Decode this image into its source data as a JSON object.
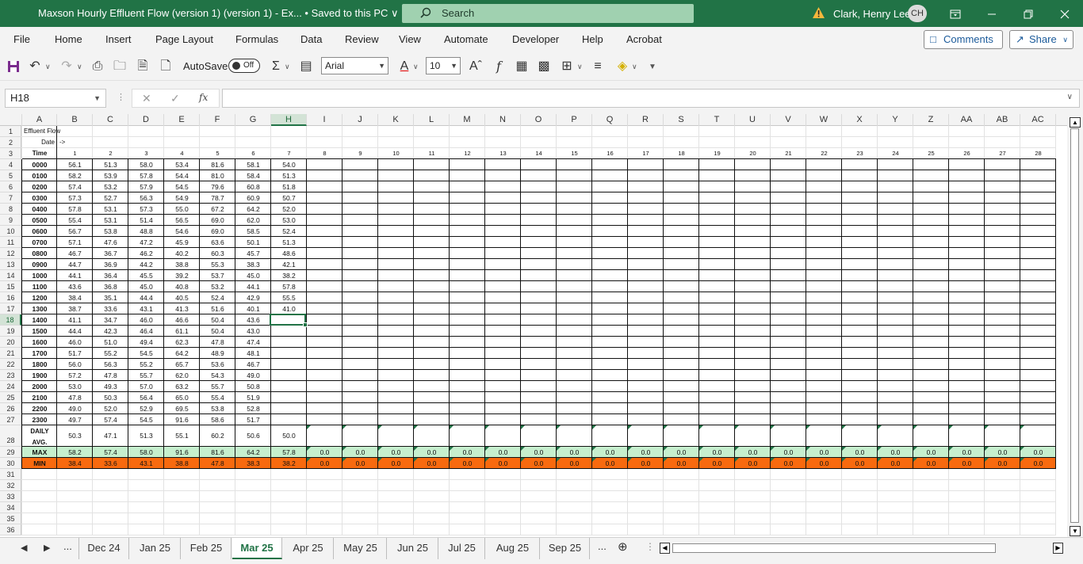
{
  "window": {
    "title": "Maxson Hourly Effluent Flow (version 1) (version 1)  -  Ex...  • Saved to this PC ∨",
    "search_placeholder": "Search",
    "user_name": "Clark, Henry Lee",
    "user_initials": "CH",
    "accent": "#217346"
  },
  "menu": {
    "items": [
      "File",
      "Home",
      "Insert",
      "Page Layout",
      "Formulas",
      "Data",
      "Review",
      "View",
      "Automate",
      "Developer",
      "Help",
      "Acrobat"
    ],
    "comments_label": "Comments",
    "share_label": "Share"
  },
  "toolbar": {
    "autosave_label": "AutoSave",
    "autosave_state": "Off",
    "font_name": "Arial",
    "font_size": "10"
  },
  "formula_bar": {
    "name_box": "H18",
    "fx_label": "fx",
    "formula": ""
  },
  "sheet": {
    "columns": [
      "A",
      "B",
      "C",
      "D",
      "E",
      "F",
      "G",
      "H",
      "I",
      "J",
      "K",
      "L",
      "M",
      "N",
      "O",
      "P",
      "Q",
      "R",
      "S",
      "T",
      "U",
      "V",
      "W",
      "X",
      "Y",
      "Z",
      "AA",
      "AB",
      "AC"
    ],
    "active_column": "H",
    "active_row": 18,
    "row_numbers": [
      1,
      2,
      3,
      4,
      5,
      6,
      7,
      8,
      9,
      10,
      11,
      12,
      13,
      14,
      15,
      16,
      17,
      18,
      19,
      20,
      21,
      22,
      23,
      24,
      25,
      26,
      27,
      28,
      29,
      30,
      31,
      32,
      33,
      34,
      35,
      36
    ],
    "title_cell": "Effluent Flow",
    "date_label": "Date",
    "date_arrow": "->",
    "time_label": "Time",
    "day_numbers": [
      "1",
      "2",
      "3",
      "4",
      "5",
      "6",
      "7",
      "8",
      "9",
      "10",
      "11",
      "12",
      "13",
      "14",
      "15",
      "16",
      "17",
      "18",
      "19",
      "20",
      "21",
      "22",
      "23",
      "24",
      "25",
      "26",
      "27",
      "28"
    ],
    "hours": [
      "0000",
      "0100",
      "0200",
      "0300",
      "0400",
      "0500",
      "0600",
      "0700",
      "0800",
      "0900",
      "1000",
      "1100",
      "1200",
      "1300",
      "1400",
      "1500",
      "1600",
      "1700",
      "1800",
      "1900",
      "2000",
      "2100",
      "2200",
      "2300"
    ],
    "values": [
      [
        "56.1",
        "51.3",
        "58.0",
        "53.4",
        "81.6",
        "58.1",
        "54.0"
      ],
      [
        "58.2",
        "53.9",
        "57.8",
        "54.4",
        "81.0",
        "58.4",
        "51.3"
      ],
      [
        "57.4",
        "53.2",
        "57.9",
        "54.5",
        "79.6",
        "60.8",
        "51.8"
      ],
      [
        "57.3",
        "52.7",
        "56.3",
        "54.9",
        "78.7",
        "60.9",
        "50.7"
      ],
      [
        "57.8",
        "53.1",
        "57.3",
        "55.0",
        "67.2",
        "64.2",
        "52.0"
      ],
      [
        "55.4",
        "53.1",
        "51.4",
        "56.5",
        "69.0",
        "62.0",
        "53.0"
      ],
      [
        "56.7",
        "53.8",
        "48.8",
        "54.6",
        "69.0",
        "58.5",
        "52.4"
      ],
      [
        "57.1",
        "47.6",
        "47.2",
        "45.9",
        "63.6",
        "50.1",
        "51.3"
      ],
      [
        "46.7",
        "36.7",
        "46.2",
        "40.2",
        "60.3",
        "45.7",
        "48.6"
      ],
      [
        "44.7",
        "36.9",
        "44.2",
        "38.8",
        "55.3",
        "38.3",
        "42.1"
      ],
      [
        "44.1",
        "36.4",
        "45.5",
        "39.2",
        "53.7",
        "45.0",
        "38.2"
      ],
      [
        "43.6",
        "36.8",
        "45.0",
        "40.8",
        "53.2",
        "44.1",
        "57.8"
      ],
      [
        "38.4",
        "35.1",
        "44.4",
        "40.5",
        "52.4",
        "42.9",
        "55.5"
      ],
      [
        "38.7",
        "33.6",
        "43.1",
        "41.3",
        "51.6",
        "40.1",
        "41.0"
      ],
      [
        "41.1",
        "34.7",
        "46.0",
        "46.6",
        "50.4",
        "43.6",
        ""
      ],
      [
        "44.4",
        "42.3",
        "46.4",
        "61.1",
        "50.4",
        "43.0",
        ""
      ],
      [
        "46.0",
        "51.0",
        "49.4",
        "62.3",
        "47.8",
        "47.4",
        ""
      ],
      [
        "51.7",
        "55.2",
        "54.5",
        "64.2",
        "48.9",
        "48.1",
        ""
      ],
      [
        "56.0",
        "56.3",
        "55.2",
        "65.7",
        "53.6",
        "46.7",
        ""
      ],
      [
        "57.2",
        "47.8",
        "55.7",
        "62.0",
        "54.3",
        "49.0",
        ""
      ],
      [
        "53.0",
        "49.3",
        "57.0",
        "63.2",
        "55.7",
        "50.8",
        ""
      ],
      [
        "47.8",
        "50.3",
        "56.4",
        "65.0",
        "55.4",
        "51.9",
        ""
      ],
      [
        "49.0",
        "52.0",
        "52.9",
        "69.5",
        "53.8",
        "52.8",
        ""
      ],
      [
        "49.7",
        "57.4",
        "54.5",
        "91.6",
        "58.6",
        "51.7",
        ""
      ]
    ],
    "daily_avg_label_1": "DAILY",
    "daily_avg_label_2": "AVG.",
    "daily_avg": [
      "50.3",
      "47.1",
      "51.3",
      "55.1",
      "60.2",
      "50.6",
      "50.0"
    ],
    "max_label": "MAX",
    "max": [
      "58.2",
      "57.4",
      "58.0",
      "91.6",
      "81.6",
      "64.2",
      "57.8",
      "0.0",
      "0.0",
      "0.0",
      "0.0",
      "0.0",
      "0.0",
      "0.0",
      "0.0",
      "0.0",
      "0.0",
      "0.0",
      "0.0",
      "0.0",
      "0.0",
      "0.0",
      "0.0",
      "0.0",
      "0.0",
      "0.0",
      "0.0",
      "0.0"
    ],
    "min_label": "MIN",
    "min": [
      "38.4",
      "33.6",
      "43.1",
      "38.8",
      "47.8",
      "38.3",
      "38.2",
      "0.0",
      "0.0",
      "0.0",
      "0.0",
      "0.0",
      "0.0",
      "0.0",
      "0.0",
      "0.0",
      "0.0",
      "0.0",
      "0.0",
      "0.0",
      "0.0",
      "0.0",
      "0.0",
      "0.0",
      "0.0",
      "0.0",
      "0.0",
      "0.0"
    ],
    "max_fill": "#c6efce",
    "min_fill": "#f86a0f"
  },
  "tabs": {
    "ellipsis": "...",
    "items": [
      "Dec 24",
      "Jan 25",
      "Feb 25",
      "Mar 25",
      "Apr 25",
      "May 25",
      "Jun 25",
      "Jul 25",
      "Aug 25",
      "Sep 25"
    ],
    "active": "Mar 25"
  }
}
